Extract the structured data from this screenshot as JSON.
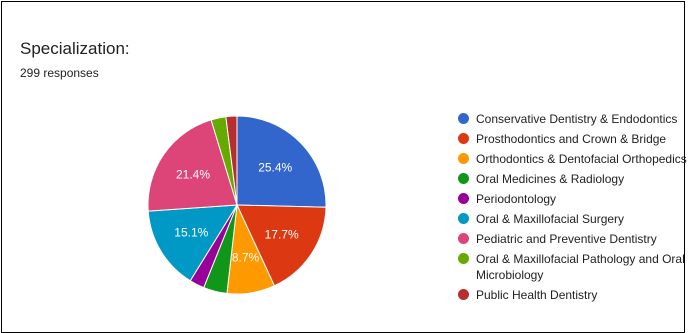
{
  "header": {
    "title": "Specialization:",
    "responses": "299 responses"
  },
  "chart_data": {
    "type": "pie",
    "start_angle_deg": 0,
    "direction": "clockwise",
    "legend_position": "right",
    "slices": [
      {
        "name": "Conservative Dentistry & Endodontics",
        "value": 25.4,
        "label": "25.4%",
        "color": "#3366cc"
      },
      {
        "name": "Prosthodontics and Crown & Bridge",
        "value": 17.7,
        "label": "17.7%",
        "color": "#dc3912"
      },
      {
        "name": "Orthodontics & Dentofacial Orthopedics",
        "value": 8.7,
        "label": "8.7%",
        "color": "#ff9900"
      },
      {
        "name": "Oral Medicines & Radiology",
        "value": 4.3,
        "label": "",
        "color": "#109618"
      },
      {
        "name": "Periodontology",
        "value": 2.7,
        "label": "",
        "color": "#990099"
      },
      {
        "name": "Oral & Maxillofacial Surgery",
        "value": 15.1,
        "label": "15.1%",
        "color": "#0099c6"
      },
      {
        "name": "Pediatric and Preventive Dentistry",
        "value": 21.4,
        "label": "21.4%",
        "color": "#dd4477"
      },
      {
        "name": "Oral & Maxillofacial Pathology and Oral Microbiology",
        "value": 2.7,
        "label": "",
        "color": "#66aa00"
      },
      {
        "name": "Public Health Dentistry",
        "value": 2.0,
        "label": "",
        "color": "#b82e2e"
      }
    ]
  }
}
